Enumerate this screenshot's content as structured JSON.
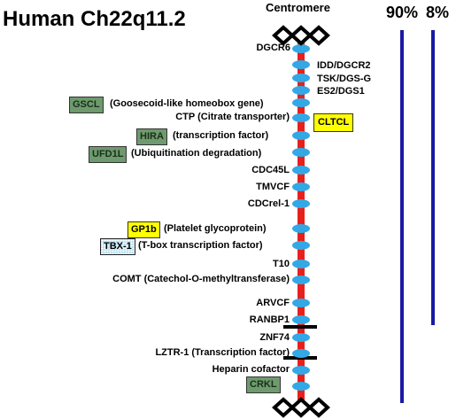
{
  "title": "Human Ch22q11.2",
  "centromere_label": "Centromere",
  "percent_labels": [
    "90%",
    "8%"
  ],
  "colors": {
    "chromosome": "#e8201c",
    "marker": "#33a8e6",
    "bar": "#1a1aa6",
    "green_box": "#6e9a6e",
    "yellow_box": "#ffff00",
    "blue_box": "#bfe3f2"
  },
  "genes": {
    "dgcr6": "DGCR6",
    "idd": "IDD/DGCR2",
    "tsk": "TSK/DGS-G",
    "es2": "ES2/DGS1",
    "gscl": "GSCL",
    "gscl_desc": "(Goosecoid-like homeobox gene)",
    "ctp": "CTP (Citrate transporter)",
    "cltcl": "CLTCL",
    "hira": "HIRA",
    "hira_desc": "(transcription factor)",
    "ufd1l": "UFD1L",
    "ufd1l_desc": "(Ubiquitination degradation)",
    "cdc45l": "CDC45L",
    "tmvcf": "TMVCF",
    "cdcrel": "CDCrel-1",
    "gp1b": "GP1b",
    "gp1b_desc": "(Platelet glycoprotein)",
    "tbx1": "TBX-1",
    "tbx1_desc": "(T-box transcription factor)",
    "t10": "T10",
    "comt": "COMT (Catechol-O-methyltransferase)",
    "arvcf": "ARVCF",
    "ranbp1": "RANBP1",
    "znf74": "ZNF74",
    "lztr1": "LZTR-1 (Transcription factor)",
    "heparin": "Heparin cofactor",
    "crkl": "CRKL"
  }
}
